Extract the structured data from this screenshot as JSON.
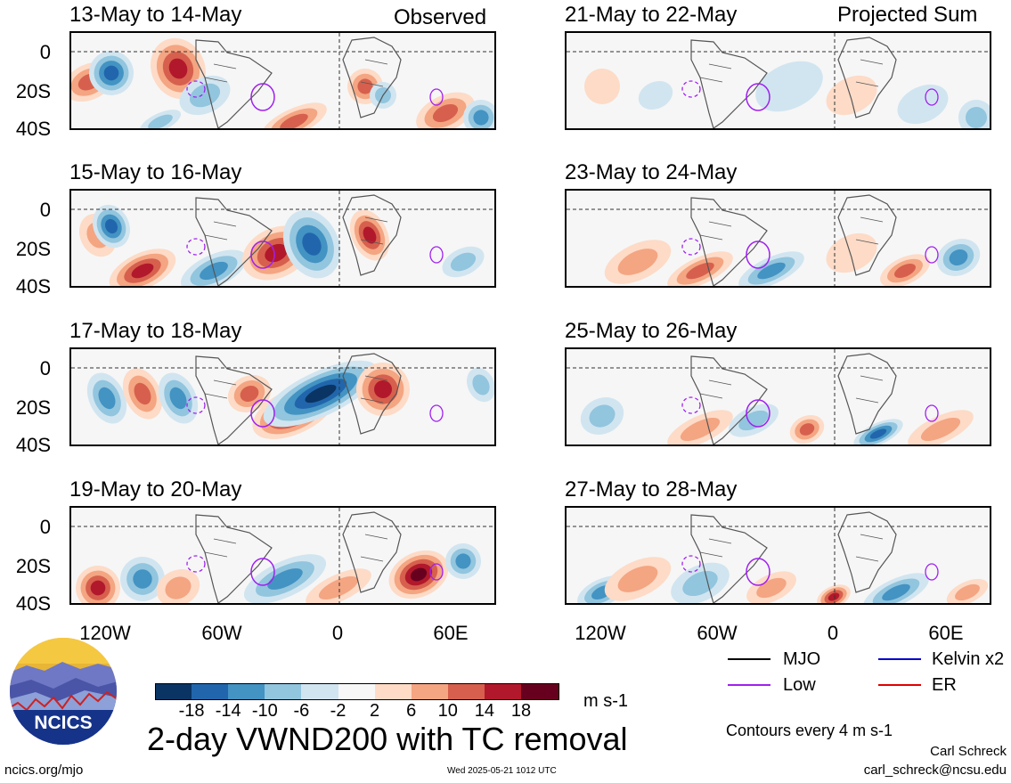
{
  "header": {
    "left_label": "Observed",
    "right_label": "Projected Sum"
  },
  "panels_left": [
    {
      "title": "13-May to 14-May"
    },
    {
      "title": "15-May to 16-May"
    },
    {
      "title": "17-May to 18-May"
    },
    {
      "title": "19-May to 20-May"
    }
  ],
  "panels_right": [
    {
      "title": "21-May to 22-May"
    },
    {
      "title": "23-May to 24-May"
    },
    {
      "title": "25-May to 26-May"
    },
    {
      "title": "27-May to 28-May"
    }
  ],
  "axes": {
    "y_ticks": [
      "0",
      "20S",
      "40S"
    ],
    "x_ticks": [
      "120W",
      "60W",
      "0",
      "60E"
    ]
  },
  "colorbar": {
    "labels": [
      "-18",
      "-14",
      "-10",
      "-6",
      "-2",
      "2",
      "6",
      "10",
      "14",
      "18"
    ],
    "colors": [
      "#0a3463",
      "#2166ac",
      "#4393c3",
      "#92c5de",
      "#d1e5f0",
      "#f7f7f7",
      "#fddbc7",
      "#f4a582",
      "#d6604d",
      "#b2182b",
      "#67001f"
    ],
    "units": "m s-1"
  },
  "legend": {
    "items": [
      {
        "label": "MJO",
        "color": "#000000"
      },
      {
        "label": "Kelvin x2",
        "color": "#0000cc"
      },
      {
        "label": "Low",
        "color": "#a020f0"
      },
      {
        "label": "ER",
        "color": "#e00000"
      }
    ],
    "contour_note": "Contours every 4 m s-1"
  },
  "main_title": "2-day VWND200 with TC removal",
  "logo": {
    "text": "NCICS"
  },
  "footer": {
    "left": "ncics.org/mjo",
    "center": "Wed 2025-05-21 1012 UTC",
    "author": "Carl Schreck",
    "email": "carl_schreck@ncsu.edu"
  }
}
